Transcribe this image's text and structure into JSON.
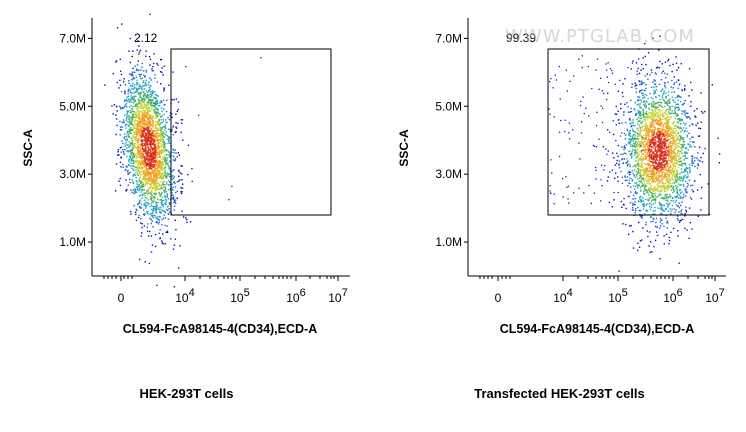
{
  "watermark": "WWW.PTGLAB.COM",
  "chart_data": [
    {
      "type": "scatter",
      "title": "HEK-293T cells",
      "xlabel": "CL594-FcA98145-4(CD34),ECD-A",
      "ylabel": "SSC-A",
      "x_scale": "biexponential",
      "x_ticks": [
        "0",
        "10^4",
        "10^5",
        "10^6",
        "10^7"
      ],
      "y_ticks": [
        "1.0M",
        "3.0M",
        "5.0M",
        "7.0M"
      ],
      "ylim": [
        0,
        7600000
      ],
      "gate": {
        "x_range": [
          "10^4 (approx.)",
          "10^7 (approx.)"
        ],
        "y_range": [
          1600000,
          6400000
        ],
        "value": "2.12"
      },
      "population": {
        "x_center": "~3×10^3",
        "y_center": 3800000,
        "spread_y": [
          1700000,
          6200000
        ]
      }
    },
    {
      "type": "scatter",
      "title": "Transfected HEK-293T cells",
      "xlabel": "CL594-FcA98145-4(CD34),ECD-A",
      "ylabel": "SSC-A",
      "x_scale": "biexponential",
      "x_ticks": [
        "0",
        "10^4",
        "10^5",
        "10^6",
        "10^7"
      ],
      "y_ticks": [
        "1.0M",
        "3.0M",
        "5.0M",
        "7.0M"
      ],
      "ylim": [
        0,
        7600000
      ],
      "gate": {
        "x_range": [
          "10^4 (approx.)",
          "10^7 (approx.)"
        ],
        "y_range": [
          1600000,
          6400000
        ],
        "value": "99.39"
      },
      "population": {
        "x_center": "~5×10^5",
        "y_center": 3700000,
        "spread_y": [
          1800000,
          6000000
        ]
      }
    }
  ]
}
